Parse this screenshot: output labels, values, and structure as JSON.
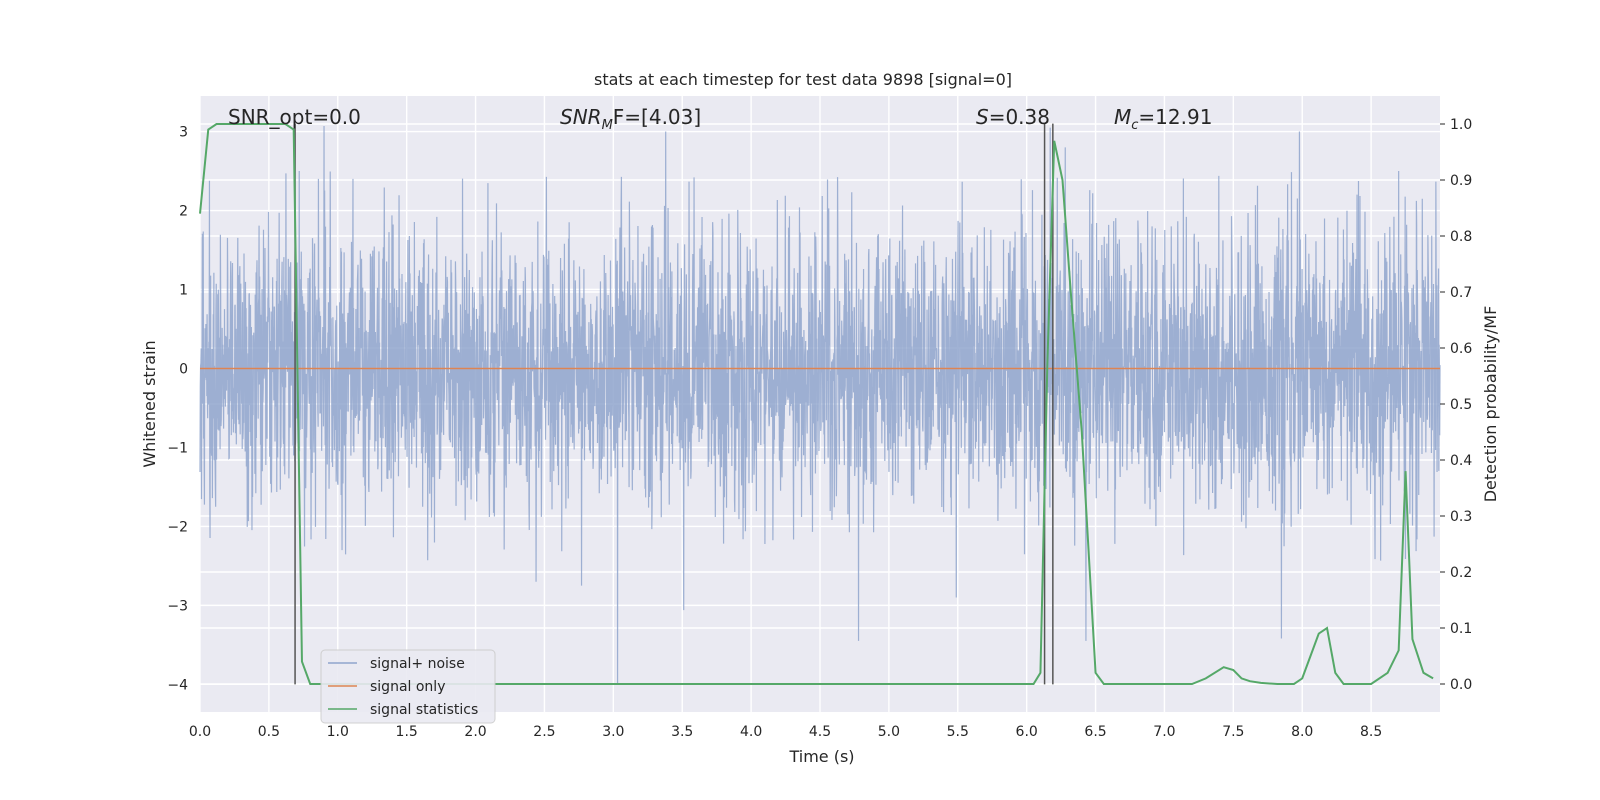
{
  "chart_data": {
    "type": "line",
    "title": "stats at each timestep for test data 9898 [signal=0]",
    "xlabel": "Time (s)",
    "ylabel": "Whitened strain",
    "ylabel_right": "Detection probability/MF",
    "xlim": [
      0.0,
      9.0
    ],
    "ylim": [
      -4.35,
      3.45
    ],
    "ylim_right": [
      -0.05,
      1.05
    ],
    "x_ticks": [
      "0.0",
      "0.5",
      "1.0",
      "1.5",
      "2.0",
      "2.5",
      "3.0",
      "3.5",
      "4.0",
      "4.5",
      "5.0",
      "5.5",
      "6.0",
      "6.5",
      "7.0",
      "7.5",
      "8.0",
      "8.5"
    ],
    "y_ticks": [
      "3",
      "2",
      "1",
      "0",
      "−1",
      "−2",
      "−3",
      "−4"
    ],
    "y_ticks_right": [
      "1.0",
      "0.9",
      "0.8",
      "0.7",
      "0.6",
      "0.5",
      "0.4",
      "0.3",
      "0.2",
      "0.1",
      "0.0"
    ],
    "grid": true,
    "legend_position": "lower-left",
    "annotations": {
      "snr_opt": "SNR_opt=0.0",
      "snr_mf_base": "SNR",
      "snr_mf_sub": "M",
      "snr_mf_rest": "F=[4.03]",
      "stat_s_sym": "S",
      "stat_s_rest": "=0.38",
      "mc_sym": "M",
      "mc_sub": "c",
      "mc_rest": "=12.91"
    },
    "vertical_markers_x": [
      0.69,
      6.13,
      6.19
    ],
    "series": [
      {
        "name": "signal+ noise",
        "color": "#8fa4cc",
        "noise_sigma": 0.85,
        "duration": 9.0,
        "peaks": [
          {
            "x": 0.72,
            "y": 2.5
          },
          {
            "x": 0.86,
            "y": 2.4
          },
          {
            "x": 0.9,
            "y": 3.07
          },
          {
            "x": 3.03,
            "y": -4.0
          },
          {
            "x": 3.38,
            "y": 3.0
          },
          {
            "x": 3.51,
            "y": -3.06
          },
          {
            "x": 4.78,
            "y": -3.45
          },
          {
            "x": 5.49,
            "y": -2.9
          },
          {
            "x": 6.17,
            "y": 3.05
          },
          {
            "x": 6.43,
            "y": -3.45
          },
          {
            "x": 7.85,
            "y": -3.42
          },
          {
            "x": 7.98,
            "y": 3.0
          },
          {
            "x": 6.28,
            "y": 2.8
          },
          {
            "x": 2.44,
            "y": -2.7
          },
          {
            "x": 2.77,
            "y": -2.75
          },
          {
            "x": 1.11,
            "y": 2.4
          },
          {
            "x": 8.7,
            "y": 2.5
          },
          {
            "x": 1.03,
            "y": -2.3
          }
        ]
      },
      {
        "name": "signal only",
        "color": "#dd8452",
        "x": [
          0.0,
          9.0
        ],
        "y": [
          0.0,
          0.0
        ]
      },
      {
        "name": "signal statistics",
        "color": "#55a868",
        "axis": "right",
        "x": [
          0.0,
          0.06,
          0.12,
          0.3,
          0.5,
          0.62,
          0.68,
          0.74,
          0.8,
          6.0,
          6.05,
          6.1,
          6.15,
          6.2,
          6.26,
          6.32,
          6.4,
          6.5,
          6.56,
          6.62,
          6.8,
          6.9,
          7.2,
          7.3,
          7.43,
          7.5,
          7.56,
          7.62,
          7.7,
          7.82,
          7.94,
          8.0,
          8.06,
          8.12,
          8.18,
          8.24,
          8.3,
          8.5,
          8.62,
          8.7,
          8.75,
          8.8,
          8.88,
          8.95
        ],
        "y": [
          0.84,
          0.99,
          1.0,
          1.0,
          1.0,
          1.0,
          0.99,
          0.04,
          0.0,
          0.0,
          0.0,
          0.02,
          0.57,
          0.97,
          0.9,
          0.7,
          0.45,
          0.02,
          0.0,
          0.0,
          0.0,
          0.0,
          0.0,
          0.01,
          0.03,
          0.025,
          0.01,
          0.005,
          0.002,
          0.0,
          0.0,
          0.01,
          0.05,
          0.09,
          0.1,
          0.02,
          0.0,
          0.0,
          0.02,
          0.06,
          0.38,
          0.08,
          0.02,
          0.01
        ]
      }
    ]
  }
}
